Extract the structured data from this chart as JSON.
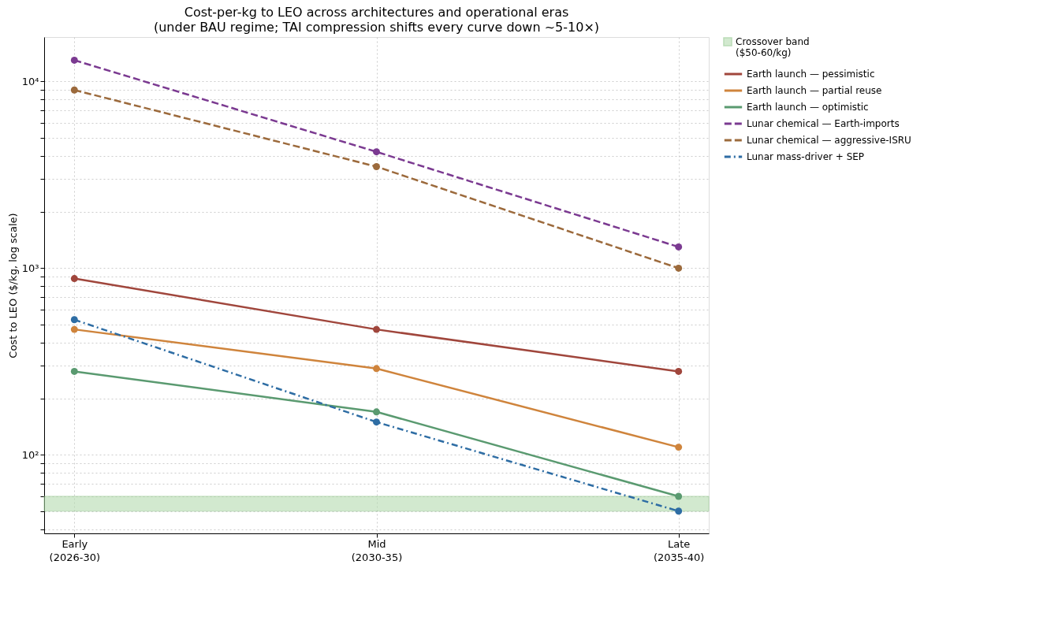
{
  "chart_data": {
    "type": "line",
    "title": "Cost-per-kg to LEO across architectures and operational eras",
    "subtitle": "(under BAU regime; TAI compression shifts every curve down ~5-10×)",
    "ylabel": "Cost to LEO ($/kg, log scale)",
    "categories": [
      "Early\n(2026-30)",
      "Mid\n(2030-35)",
      "Late\n(2035-40)"
    ],
    "log": "y",
    "grid": true,
    "legend": "right",
    "marker": "circle",
    "ylim": [
      38,
      17300
    ],
    "yticks": [
      {
        "value": 40,
        "label": null
      },
      {
        "value": 50,
        "label": null
      },
      {
        "value": 60,
        "label": null
      },
      {
        "value": 70,
        "label": null
      },
      {
        "value": 80,
        "label": null
      },
      {
        "value": 90,
        "label": null
      },
      {
        "value": 100,
        "label": "10²"
      },
      {
        "value": 200,
        "label": null
      },
      {
        "value": 300,
        "label": null
      },
      {
        "value": 400,
        "label": null
      },
      {
        "value": 500,
        "label": null
      },
      {
        "value": 600,
        "label": null
      },
      {
        "value": 700,
        "label": null
      },
      {
        "value": 800,
        "label": null
      },
      {
        "value": 900,
        "label": null
      },
      {
        "value": 1000,
        "label": "10³"
      },
      {
        "value": 2000,
        "label": null
      },
      {
        "value": 3000,
        "label": null
      },
      {
        "value": 4000,
        "label": null
      },
      {
        "value": 5000,
        "label": null
      },
      {
        "value": 6000,
        "label": null
      },
      {
        "value": 7000,
        "label": null
      },
      {
        "value": 8000,
        "label": null
      },
      {
        "value": 9000,
        "label": null
      },
      {
        "value": 10000,
        "label": "10⁴"
      }
    ],
    "series": [
      {
        "name": "Earth launch — pessimistic",
        "color": "#a0463c",
        "line_style": "solid",
        "values": [
          880,
          470,
          280
        ]
      },
      {
        "name": "Earth launch — partial reuse",
        "color": "#cf843c",
        "line_style": "solid",
        "values": [
          470,
          290,
          110
        ]
      },
      {
        "name": "Earth launch — optimistic",
        "color": "#5a9a70",
        "line_style": "solid",
        "values": [
          280,
          170,
          60
        ]
      },
      {
        "name": "Lunar chemical — Earth-imports",
        "color": "#7b3a91",
        "line_style": "dashed",
        "values": [
          13000,
          4200,
          1300
        ]
      },
      {
        "name": "Lunar chemical — aggressive-ISRU",
        "color": "#9c6a3c",
        "line_style": "dashed",
        "values": [
          9000,
          3500,
          1000
        ]
      },
      {
        "name": "Lunar mass-driver + SEP",
        "color": "#2e6da4",
        "line_style": "dashdot",
        "values": [
          530,
          150,
          50
        ]
      }
    ],
    "bands": [
      {
        "axis": "y",
        "from": 50,
        "to": 60,
        "label": "Crossover band\n($50-60/kg)",
        "color": "#b5dcb0"
      }
    ]
  }
}
